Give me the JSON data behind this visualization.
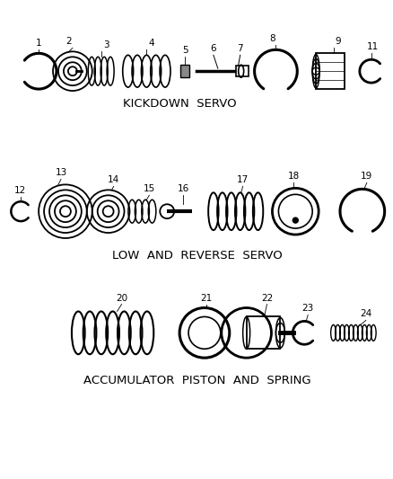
{
  "bg_color": "#ffffff",
  "line_color": "#000000",
  "section1_label": "KICKDOWN  SERVO",
  "section2_label": "LOW  AND  REVERSE  SERVO",
  "section3_label": "ACCUMULATOR  PISTON  AND  SPRING",
  "fig_width": 4.39,
  "fig_height": 5.33,
  "dpi": 100
}
